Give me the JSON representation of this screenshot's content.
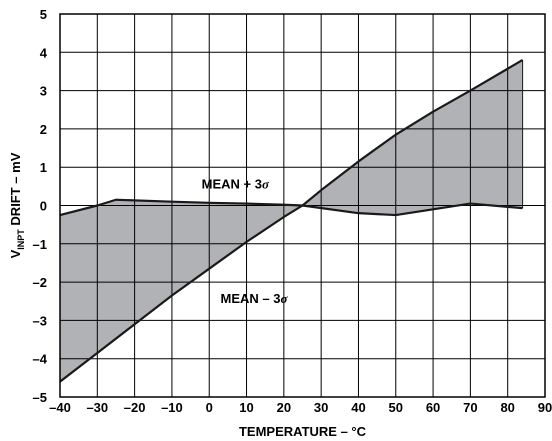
{
  "chart_data": {
    "type": "area",
    "xlabel": "TEMPERATURE – °C",
    "ylabel_main": "V",
    "ylabel_sub": "INPT",
    "ylabel_rest": " DRIFT – mV",
    "xlim": [
      -40,
      90
    ],
    "ylim": [
      -5,
      5
    ],
    "x_ticks": [
      "–40",
      "–30",
      "–20",
      "–10",
      "0",
      "10",
      "20",
      "30",
      "40",
      "50",
      "60",
      "70",
      "80",
      "90"
    ],
    "y_ticks": [
      "5",
      "4",
      "3",
      "2",
      "1",
      "0",
      "–1",
      "–2",
      "–3",
      "–4",
      "–5"
    ],
    "x_tick_values": [
      -40,
      -30,
      -20,
      -10,
      0,
      10,
      20,
      30,
      40,
      50,
      60,
      70,
      80,
      90
    ],
    "y_tick_values": [
      5,
      4,
      3,
      2,
      1,
      0,
      -1,
      -2,
      -3,
      -4,
      -5
    ],
    "grid": true,
    "colors": {
      "fill": "#b1b2b6",
      "line": "#1a1a1a",
      "grid": "#000000"
    },
    "series": [
      {
        "name": "MEAN + 3σ",
        "points": [
          [
            -40,
            -0.25
          ],
          [
            -30,
            0.0
          ],
          [
            -25,
            0.15
          ],
          [
            -10,
            0.1
          ],
          [
            0,
            0.07
          ],
          [
            10,
            0.05
          ],
          [
            20,
            0.02
          ],
          [
            25,
            0.0
          ],
          [
            40,
            -0.2
          ],
          [
            50,
            -0.25
          ],
          [
            60,
            -0.1
          ],
          [
            70,
            0.05
          ],
          [
            84,
            -0.07
          ]
        ]
      },
      {
        "name": "MEAN – 3σ",
        "points": [
          [
            -40,
            -4.6
          ],
          [
            -30,
            -3.85
          ],
          [
            -20,
            -3.1
          ],
          [
            -10,
            -2.35
          ],
          [
            0,
            -1.65
          ],
          [
            10,
            -0.95
          ],
          [
            20,
            -0.3
          ],
          [
            25,
            0.0
          ],
          [
            30,
            0.4
          ],
          [
            40,
            1.15
          ],
          [
            50,
            1.85
          ],
          [
            60,
            2.45
          ],
          [
            70,
            3.0
          ],
          [
            84,
            3.8
          ]
        ]
      }
    ],
    "annotations": [
      {
        "text_main": "MEAN + 3",
        "text_sym": "σ",
        "x": 7,
        "y": 0.45
      },
      {
        "text_main": "MEAN – 3",
        "text_sym": "σ",
        "x": 12,
        "y": -2.55
      }
    ]
  }
}
